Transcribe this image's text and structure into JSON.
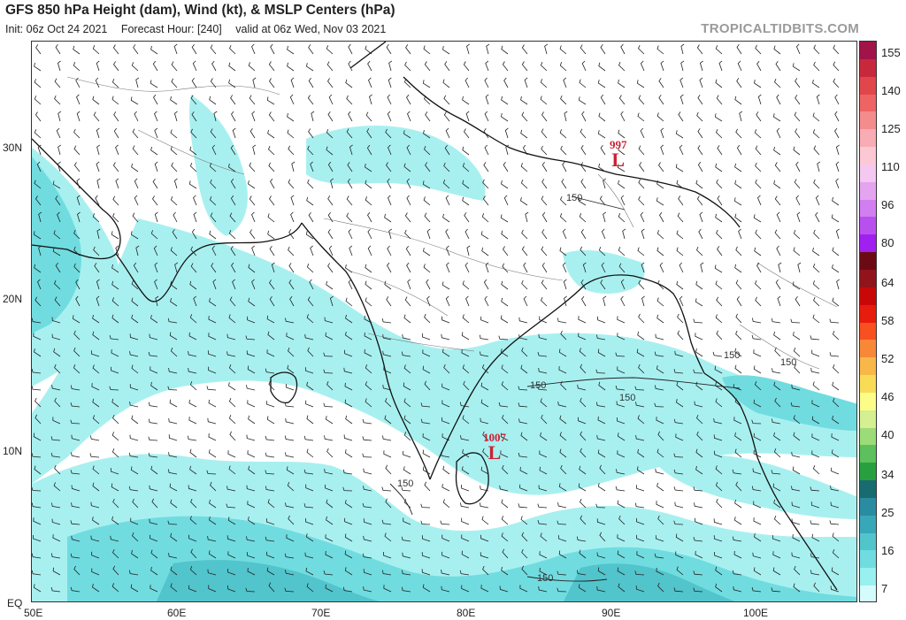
{
  "header": {
    "title": "GFS 850 hPa Height (dam), Wind (kt), & MSLP Centers (hPa)",
    "init": "Init: 06z Oct 24 2021",
    "forecast_hour": "Forecast Hour: [240]",
    "valid": "valid at 06z Wed, Nov 03 2021",
    "brand": "TROPICALTIDBITS.COM"
  },
  "axes": {
    "lat_labels": [
      "30N",
      "20N",
      "10N",
      "EQ"
    ],
    "lon_labels": [
      "50E",
      "60E",
      "70E",
      "80E",
      "90E",
      "100E"
    ]
  },
  "colorbar": {
    "labels": [
      "155",
      "140",
      "125",
      "110",
      "96",
      "80",
      "64",
      "58",
      "52",
      "46",
      "40",
      "34",
      "25",
      "16",
      "7"
    ],
    "colors": [
      "#a0144a",
      "#c8283c",
      "#e0464a",
      "#ee6464",
      "#f48c8c",
      "#f8acb4",
      "#fcc8d4",
      "#f4c8f0",
      "#e4a4f0",
      "#d07ef0",
      "#b850f0",
      "#a020f0",
      "#6c0a14",
      "#90141a",
      "#c80808",
      "#e81c0c",
      "#f85020",
      "#f88838",
      "#f8b848",
      "#f8dc58",
      "#fcfc88",
      "#d4f090",
      "#9cdc78",
      "#5cc05c",
      "#28a040",
      "#186c70",
      "#2a8ca0",
      "#38a8b8",
      "#52c4cc",
      "#70dce0",
      "#98f0f0",
      "#d4fcfc"
    ]
  },
  "map": {
    "pressure_centers": [
      {
        "label": "L",
        "value": "997"
      },
      {
        "label": "L",
        "value": "1007"
      }
    ],
    "contour_labels": [
      "150",
      "150",
      "150",
      "150",
      "150",
      "150",
      "150"
    ]
  }
}
